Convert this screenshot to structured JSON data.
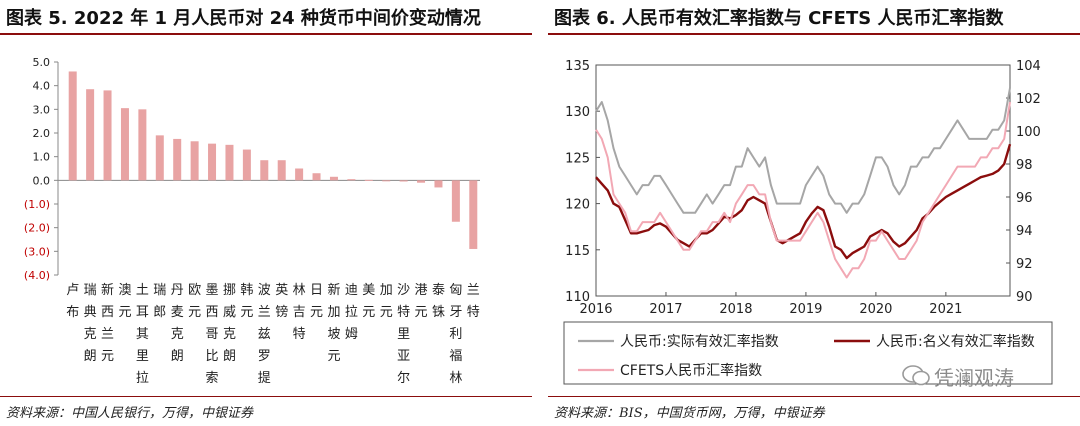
{
  "left": {
    "title": "图表 5. 2022 年 1 月人民币对 24 种货币中间价变动情况",
    "source": "资料来源：中国人民银行，万得，中银证券",
    "chart_data": {
      "type": "bar",
      "ylim": [
        -4.0,
        5.0
      ],
      "yticks": [
        "5.0",
        "4.0",
        "3.0",
        "2.0",
        "1.0",
        "0.0",
        "(1.0)",
        "(2.0)",
        "(3.0)",
        "(4.0)"
      ],
      "categories": [
        "卢布",
        "瑞典克朗",
        "新西兰元",
        "澳元",
        "土耳其里拉",
        "瑞郎",
        "丹麦克朗",
        "欧元",
        "墨西哥比索",
        "挪威克朗",
        "韩元",
        "波兰兹罗提",
        "英镑",
        "林吉特",
        "日元",
        "新加坡元",
        "迪拉姆",
        "美元",
        "加元",
        "沙特里亚尔",
        "港元",
        "泰铢",
        "匈牙利福林",
        "兰特"
      ],
      "values": [
        4.6,
        3.85,
        3.8,
        3.05,
        3.0,
        1.9,
        1.75,
        1.65,
        1.55,
        1.5,
        1.3,
        0.85,
        0.85,
        0.5,
        0.3,
        0.15,
        0.05,
        0.02,
        -0.02,
        -0.05,
        -0.1,
        -0.3,
        -1.75,
        -2.9
      ],
      "color": "#e8a3a3",
      "negative_label_color": "#c00000"
    }
  },
  "right": {
    "title": "图表 6. 人民币有效汇率指数与 CFETS 人民币汇率指数",
    "source": "资料来源：BIS，中国货币网，万得，中银证券",
    "chart_data": {
      "type": "line",
      "x": [
        "2016-01",
        "2016-02",
        "2016-03",
        "2016-04",
        "2016-05",
        "2016-06",
        "2016-07",
        "2016-08",
        "2016-09",
        "2016-10",
        "2016-11",
        "2016-12",
        "2017-01",
        "2017-02",
        "2017-03",
        "2017-04",
        "2017-05",
        "2017-06",
        "2017-07",
        "2017-08",
        "2017-09",
        "2017-10",
        "2017-11",
        "2017-12",
        "2018-01",
        "2018-02",
        "2018-03",
        "2018-04",
        "2018-05",
        "2018-06",
        "2018-07",
        "2018-08",
        "2018-09",
        "2018-10",
        "2018-11",
        "2018-12",
        "2019-01",
        "2019-02",
        "2019-03",
        "2019-04",
        "2019-05",
        "2019-06",
        "2019-07",
        "2019-08",
        "2019-09",
        "2019-10",
        "2019-11",
        "2019-12",
        "2020-01",
        "2020-02",
        "2020-03",
        "2020-04",
        "2020-05",
        "2020-06",
        "2020-07",
        "2020-08",
        "2020-09",
        "2020-10",
        "2020-11",
        "2020-12",
        "2021-01",
        "2021-02",
        "2021-03",
        "2021-04",
        "2021-05",
        "2021-06",
        "2021-07",
        "2021-08",
        "2021-09",
        "2021-10",
        "2021-11",
        "2021-12"
      ],
      "xticks": [
        "2016",
        "2017",
        "2018",
        "2019",
        "2020",
        "2021"
      ],
      "ylim_left": [
        110,
        135
      ],
      "yticks_left": [
        "110",
        "115",
        "120",
        "125",
        "130",
        "135"
      ],
      "ylim_right": [
        90,
        104
      ],
      "yticks_right": [
        "90",
        "92",
        "94",
        "96",
        "98",
        "100",
        "102",
        "104"
      ],
      "series": [
        {
          "name": "人民币:实际有效汇率指数",
          "axis": "left",
          "color": "#a6a6a6",
          "values": [
            130,
            131,
            129,
            126,
            124,
            123,
            122,
            121,
            122,
            122,
            123,
            123,
            122,
            121,
            120,
            119,
            119,
            119,
            120,
            121,
            120,
            121,
            122,
            122,
            124,
            124,
            126,
            125,
            124,
            125,
            122,
            120,
            120,
            120,
            120,
            120,
            122,
            123,
            124,
            123,
            121,
            120,
            120,
            119,
            120,
            120,
            121,
            123,
            125,
            125,
            124,
            122,
            121,
            122,
            124,
            124,
            125,
            125,
            126,
            126,
            127,
            128,
            129,
            128,
            127,
            127,
            127,
            127,
            128,
            128,
            129,
            132.5
          ]
        },
        {
          "name": "人民币:名义有效汇率指数",
          "axis": "right",
          "color": "#8b0d0d",
          "values": [
            97.2,
            96.8,
            96.4,
            95.6,
            95.4,
            94.6,
            93.8,
            93.8,
            93.9,
            94.0,
            94.3,
            94.4,
            94.2,
            93.8,
            93.4,
            93.2,
            93.0,
            93.4,
            93.8,
            93.8,
            94.0,
            94.4,
            94.8,
            94.7,
            94.9,
            95.2,
            95.8,
            96.0,
            95.8,
            95.6,
            94.5,
            93.4,
            93.2,
            93.4,
            93.6,
            93.8,
            94.5,
            95.0,
            95.4,
            95.2,
            94.2,
            93.0,
            92.8,
            92.3,
            92.6,
            92.8,
            93.0,
            93.6,
            93.8,
            94.0,
            93.8,
            93.3,
            93.0,
            93.2,
            93.6,
            94.0,
            94.7,
            95.0,
            95.4,
            95.7,
            96.0,
            96.2,
            96.4,
            96.6,
            96.8,
            97.0,
            97.2,
            97.3,
            97.4,
            97.6,
            98.0,
            99.2
          ]
        },
        {
          "name": "CFETS人民币汇率指数",
          "axis": "left",
          "color": "#f2a8b4",
          "values": [
            128,
            127,
            125,
            121,
            120,
            119,
            117,
            117,
            118,
            118,
            118,
            119,
            118,
            117,
            116,
            115,
            115,
            116,
            117,
            117,
            118,
            118,
            119,
            118,
            120,
            121,
            122,
            122,
            121,
            121,
            118,
            116,
            116,
            116,
            116,
            116,
            117,
            118,
            119,
            118,
            116,
            114,
            113,
            112,
            113,
            113,
            114,
            116,
            116,
            117,
            116,
            115,
            114,
            114,
            115,
            116,
            118,
            119,
            120,
            121,
            122,
            123,
            124,
            124,
            124,
            124,
            125,
            125,
            126,
            126,
            127,
            131
          ]
        }
      ]
    }
  },
  "watermark": "凭澜观涛"
}
